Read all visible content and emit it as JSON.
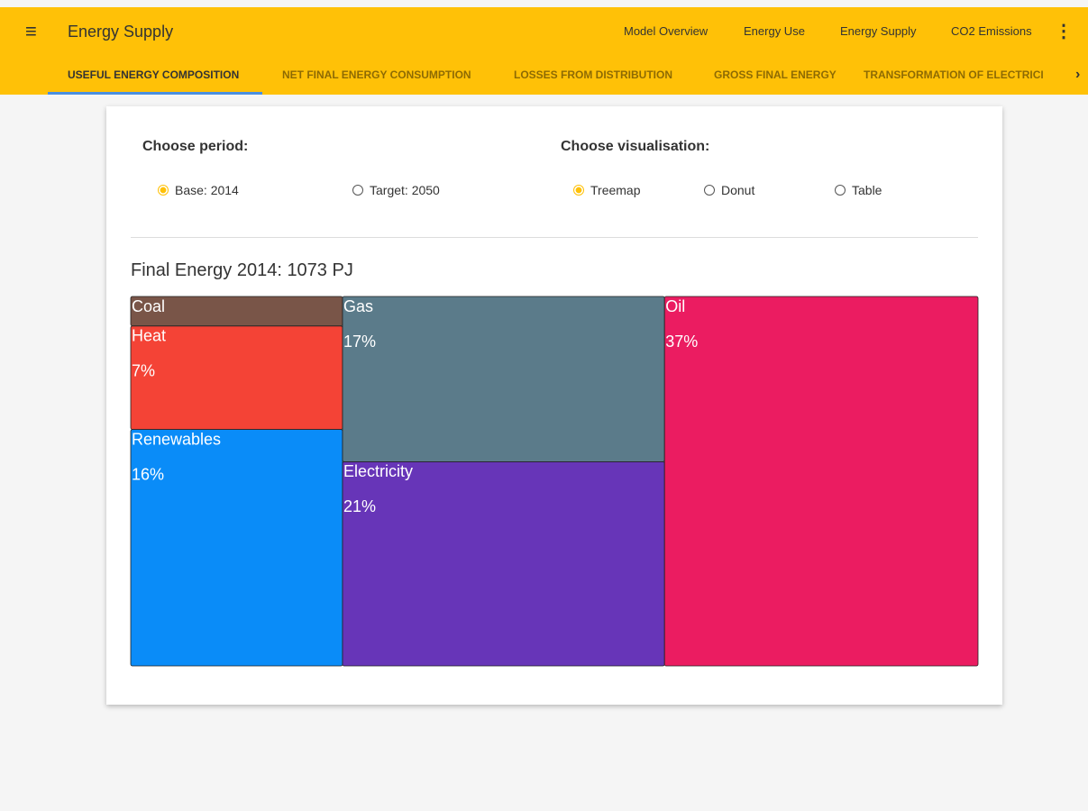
{
  "header": {
    "title": "Energy Supply",
    "nav": [
      "Model Overview",
      "Energy Use",
      "Energy Supply",
      "CO2 Emissions"
    ]
  },
  "tabs": {
    "items": [
      "USEFUL ENERGY COMPOSITION",
      "NET FINAL ENERGY CONSUMPTION",
      "LOSSES FROM DISTRIBUTION",
      "GROSS FINAL ENERGY",
      "TRANSFORMATION OF ELECTRICI"
    ],
    "selected": 0
  },
  "controls": {
    "period": {
      "label": "Choose period:",
      "options": [
        "Base: 2014",
        "Target: 2050"
      ],
      "selected": 0
    },
    "visualisation": {
      "label": "Choose visualisation:",
      "options": [
        "Treemap",
        "Donut",
        "Table"
      ],
      "selected": 0
    }
  },
  "chart_data": {
    "type": "treemap",
    "title": "Final Energy 2014: 1073 PJ",
    "categories": [
      "Coal",
      "Heat",
      "Renewables",
      "Gas",
      "Electricity",
      "Oil"
    ],
    "values": [
      2,
      7,
      16,
      17,
      21,
      37
    ],
    "value_labels": [
      null,
      "7%",
      "16%",
      "17%",
      "21%",
      "37%"
    ],
    "colors": [
      "#795548",
      "#f44336",
      "#0a8cf8",
      "#5b7b8a",
      "#6735b8",
      "#eb1c61"
    ]
  }
}
